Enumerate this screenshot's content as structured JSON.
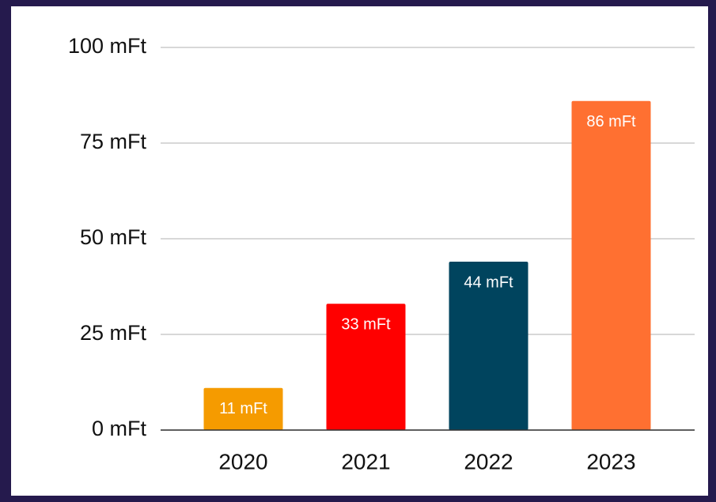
{
  "chart_data": {
    "type": "bar",
    "categories": [
      "2020",
      "2021",
      "2022",
      "2023"
    ],
    "values": [
      11,
      33,
      44,
      86
    ],
    "value_labels": [
      "11 mFt",
      "33 mFt",
      "44 mFt",
      "86 mFt"
    ],
    "colors": [
      "#f59b00",
      "#ff0000",
      "#00445e",
      "#ff7031"
    ],
    "ylim": [
      0,
      100
    ],
    "yticks": [
      {
        "value": 0,
        "label": "0 mFt"
      },
      {
        "value": 25,
        "label": "25 mFt"
      },
      {
        "value": 50,
        "label": "50 mFt"
      },
      {
        "value": 75,
        "label": "75 mFt"
      },
      {
        "value": 100,
        "label": "100 mFt"
      }
    ],
    "grid": true
  }
}
